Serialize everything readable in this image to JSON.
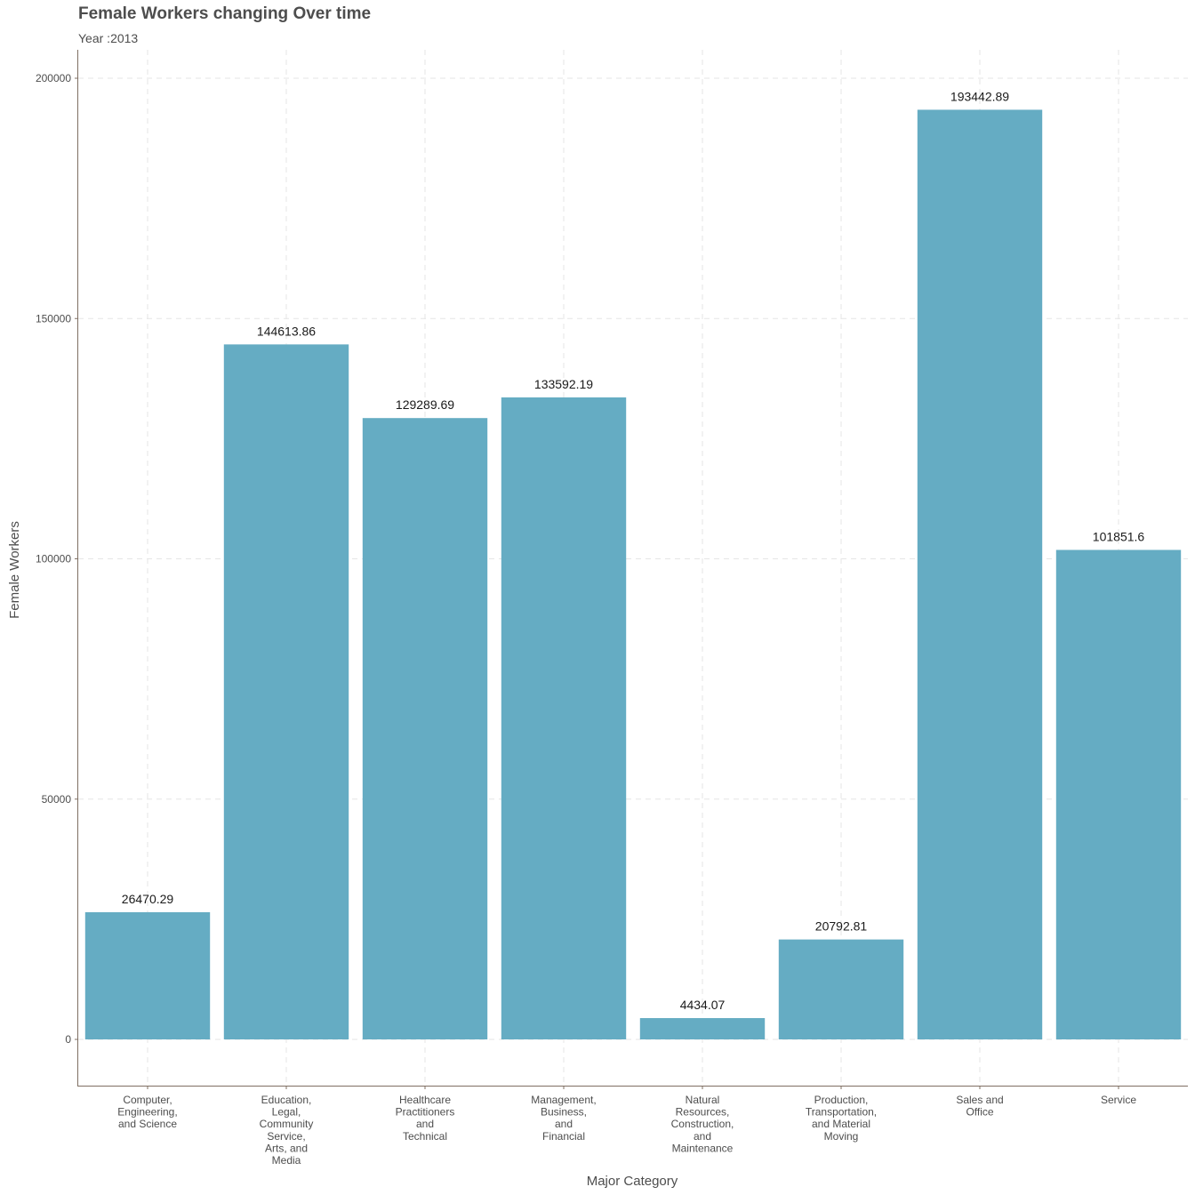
{
  "chart_data": {
    "type": "bar",
    "title": "Female Workers changing Over time",
    "subtitle": "Year :2013",
    "xlabel": "Major Category",
    "ylabel": "Female Workers",
    "ylim": [
      -9500,
      204000
    ],
    "yticks": [
      0,
      50000,
      100000,
      150000,
      200000
    ],
    "grid": true,
    "bar_color": "#65acc3",
    "categories": [
      [
        "Computer,",
        "Engineering,",
        "and Science"
      ],
      [
        "Education,",
        "Legal,",
        "Community",
        "Service,",
        "Arts, and",
        "Media"
      ],
      [
        "Healthcare",
        "Practitioners",
        "and",
        "Technical"
      ],
      [
        "Management,",
        "Business,",
        "and",
        "Financial"
      ],
      [
        "Natural",
        "Resources,",
        "Construction,",
        "and",
        "Maintenance"
      ],
      [
        "Production,",
        "Transportation,",
        "and Material",
        "Moving"
      ],
      [
        "Sales and",
        "Office"
      ],
      [
        "Service"
      ]
    ],
    "values": [
      26470.29,
      144613.86,
      129289.69,
      133592.19,
      4434.07,
      20792.81,
      193442.89,
      101851.6
    ],
    "value_labels": [
      "26470.29",
      "144613.86",
      "129289.69",
      "133592.19",
      "4434.07",
      "20792.81",
      "193442.89",
      "101851.6"
    ]
  }
}
